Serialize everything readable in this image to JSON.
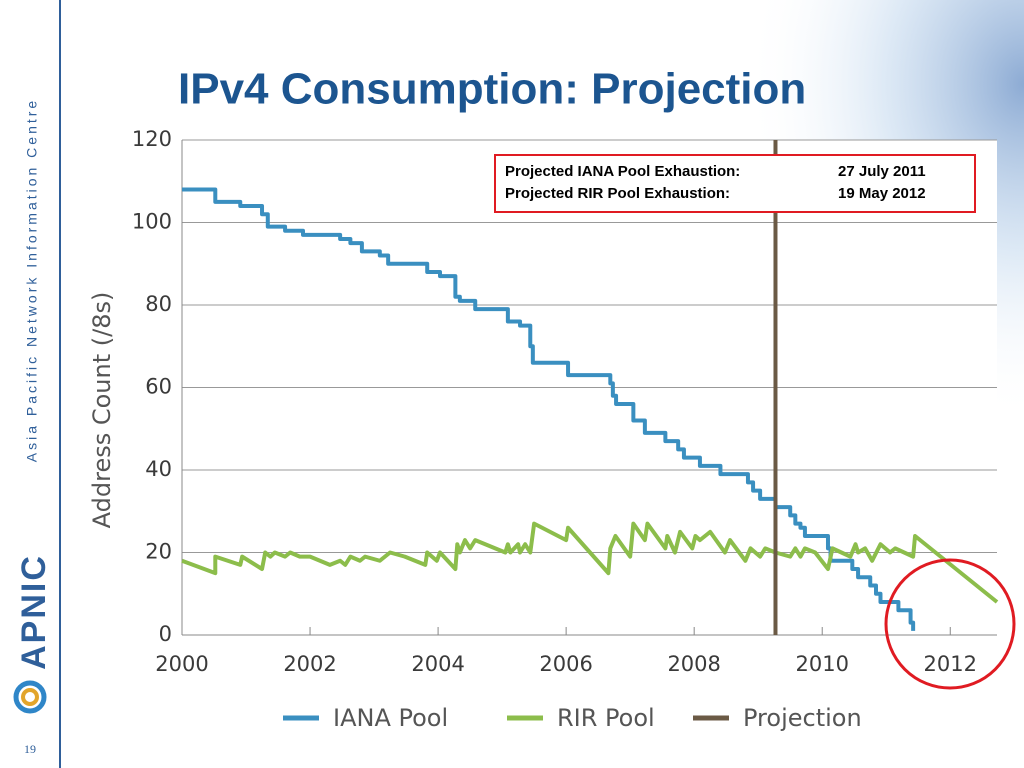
{
  "slide": {
    "title": "IPv4 Consumption: Projection",
    "sidebar_text": "Asia Pacific Network Information Centre",
    "logo_text": "APNIC",
    "page_number": "19"
  },
  "chart_data": {
    "type": "line",
    "y_label": "Address Count (/8s)",
    "xlim": [
      2000,
      2012.73
    ],
    "xticks": [
      2000,
      2002,
      2004,
      2006,
      2008,
      2010,
      2012
    ],
    "ylim": [
      0,
      120
    ],
    "yticks": [
      0,
      20,
      40,
      60,
      80,
      100,
      120
    ],
    "grid": true,
    "annotations": [
      {
        "label": "Projected IANA Pool Exhaustion:",
        "date": "27 July 2011"
      },
      {
        "label": "Projected RIR Pool Exhaustion:",
        "date": "19 May 2012"
      }
    ],
    "series": [
      {
        "name": "IANA Pool",
        "color": "#3a8fc0",
        "step": "post",
        "x": [
          2000,
          2000.52,
          2000.91,
          2001.25,
          2001.34,
          2001.61,
          2001.89,
          2002.47,
          2002.63,
          2002.81,
          2003.09,
          2003.22,
          2003.83,
          2004.03,
          2004.27,
          2004.34,
          2004.58,
          2005.09,
          2005.28,
          2005.44,
          2005.48,
          2006.03,
          2006.69,
          2006.73,
          2006.78,
          2007.05,
          2007.23,
          2007.55,
          2007.75,
          2007.84,
          2008.09,
          2008.41,
          2008.84,
          2008.92,
          2009.03,
          2009.27,
          2009.5,
          2009.58,
          2009.66,
          2009.73,
          2010.09,
          2010.13,
          2010.47,
          2010.56,
          2010.75,
          2010.84,
          2010.91,
          2011.19,
          2011.38,
          2011.42
        ],
        "values": [
          108,
          105,
          104,
          102,
          99,
          98,
          97,
          96,
          95,
          93,
          92,
          90,
          88,
          87,
          82,
          81,
          79,
          76,
          75,
          70,
          66,
          63,
          61,
          58,
          56,
          52,
          49,
          47,
          45,
          43,
          41,
          39,
          37,
          35,
          33,
          31,
          29,
          27,
          26,
          24,
          21,
          18,
          16,
          14,
          12,
          10,
          8,
          6,
          3,
          1
        ]
      },
      {
        "name": "RIR Pool",
        "color": "#8cbd4b",
        "x": [
          2000,
          2000.52,
          2000.52,
          2000.91,
          2000.94,
          2001.25,
          2001.3,
          2001.38,
          2001.45,
          2001.61,
          2001.69,
          2001.84,
          2002,
          2002.31,
          2002.47,
          2002.55,
          2002.63,
          2002.78,
          2002.86,
          2003.09,
          2003.25,
          2003.48,
          2003.8,
          2003.83,
          2003.98,
          2004.03,
          2004.27,
          2004.3,
          2004.34,
          2004.42,
          2004.5,
          2004.58,
          2005.05,
          2005.09,
          2005.13,
          2005.25,
          2005.28,
          2005.36,
          2005.44,
          2005.5,
          2006,
          2006.03,
          2006.66,
          2006.69,
          2006.77,
          2007,
          2007.05,
          2007.23,
          2007.27,
          2007.55,
          2007.58,
          2007.7,
          2007.78,
          2007.97,
          2008.02,
          2008.09,
          2008.25,
          2008.48,
          2008.56,
          2008.8,
          2008.88,
          2009.03,
          2009.11,
          2009.27,
          2009.5,
          2009.58,
          2009.66,
          2009.73,
          2009.89,
          2010.09,
          2010.16,
          2010.44,
          2010.52,
          2010.56,
          2010.67,
          2010.78,
          2010.91,
          2011.06,
          2011.14,
          2011.42,
          2011.45,
          2012.73
        ],
        "values": [
          18,
          15,
          19,
          17,
          19,
          16,
          20,
          19,
          20,
          19,
          20,
          19,
          19,
          17,
          18,
          17,
          19,
          18,
          19,
          18,
          20,
          19,
          17,
          20,
          18,
          20,
          16,
          22,
          20,
          23,
          21,
          23,
          20,
          22,
          20,
          22,
          20,
          22,
          20,
          27,
          23,
          26,
          15,
          21,
          24,
          19,
          27,
          23,
          27,
          21,
          24,
          20,
          25,
          21,
          24,
          23,
          25,
          20,
          23,
          18,
          21,
          19,
          21,
          20,
          19,
          21,
          19,
          21,
          20,
          16,
          21,
          19,
          22,
          20,
          21,
          18,
          22,
          20,
          21,
          19,
          24,
          8
        ]
      },
      {
        "name": "Projection",
        "color": "#6b5a45",
        "x": [
          2009.27,
          2009.27
        ],
        "values": [
          0,
          120
        ]
      }
    ]
  }
}
